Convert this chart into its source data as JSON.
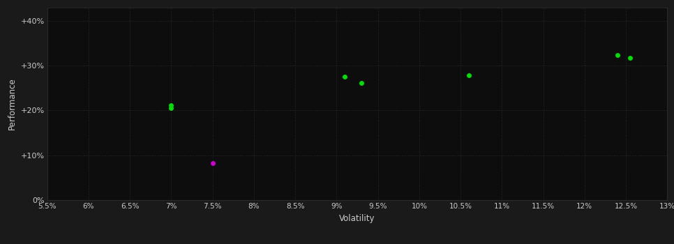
{
  "background_color": "#1a1a1a",
  "plot_bg_color": "#0d0d0d",
  "grid_color": "#2a2a2a",
  "xlabel": "Volatility",
  "ylabel": "Performance",
  "xlim": [
    0.055,
    0.13
  ],
  "ylim": [
    0.0,
    0.43
  ],
  "xticks": [
    0.055,
    0.06,
    0.065,
    0.07,
    0.075,
    0.08,
    0.085,
    0.09,
    0.095,
    0.1,
    0.105,
    0.11,
    0.115,
    0.12,
    0.125,
    0.13
  ],
  "yticks": [
    0.0,
    0.1,
    0.2,
    0.3,
    0.4
  ],
  "ytick_labels": [
    "0%",
    "+10%",
    "+20%",
    "+30%",
    "+40%"
  ],
  "xtick_labels": [
    "5.5%",
    "6%",
    "6.5%",
    "7%",
    "7.5%",
    "8%",
    "8.5%",
    "9%",
    "9.5%",
    "10%",
    "10.5%",
    "11%",
    "11.5%",
    "12%",
    "12.5%",
    "13%"
  ],
  "points_green": [
    [
      0.07,
      0.212
    ],
    [
      0.07,
      0.205
    ],
    [
      0.091,
      0.275
    ],
    [
      0.093,
      0.262
    ],
    [
      0.106,
      0.278
    ],
    [
      0.124,
      0.323
    ],
    [
      0.1255,
      0.318
    ]
  ],
  "points_magenta": [
    [
      0.075,
      0.082
    ]
  ],
  "green_color": "#00dd00",
  "magenta_color": "#cc00cc",
  "tick_color": "#cccccc",
  "label_color": "#cccccc",
  "marker_size": 5
}
